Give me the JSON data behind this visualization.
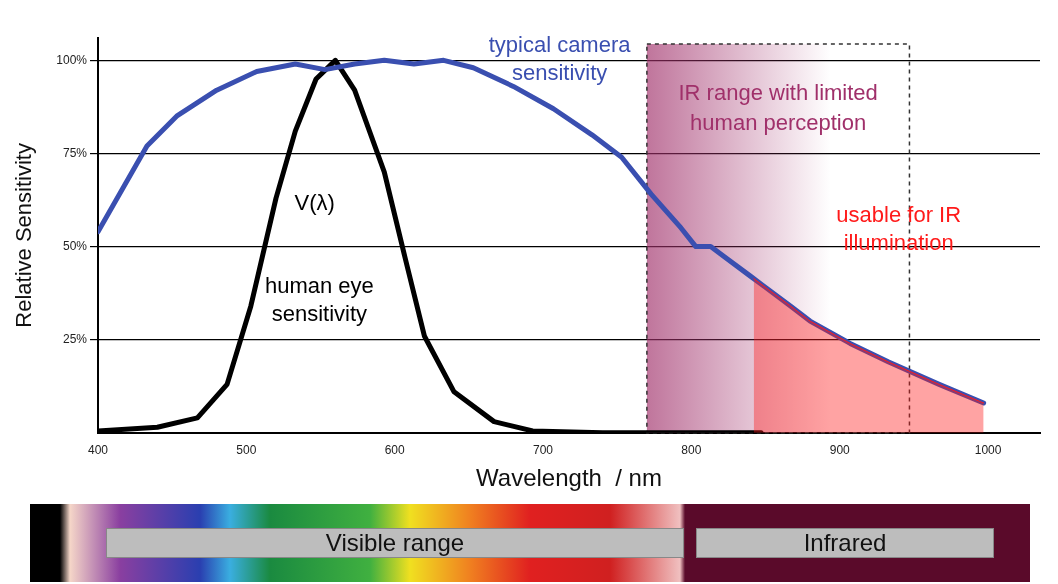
{
  "chart_data": {
    "type": "line",
    "xlabel": "Wavelength  / nm",
    "ylabel": "Relative Sensitivity",
    "xlim": [
      400,
      1035
    ],
    "ylim": [
      0,
      106
    ],
    "xticks": [
      400,
      500,
      600,
      700,
      800,
      900,
      1000
    ],
    "yticks": [
      {
        "value": 25,
        "label": "25%"
      },
      {
        "value": 50,
        "label": "50%"
      },
      {
        "value": 75,
        "label": "75%"
      },
      {
        "value": 100,
        "label": "100%"
      }
    ],
    "grid": "y",
    "marker": "none",
    "line_style": "solid",
    "series": [
      {
        "name": "usable for IR illumination",
        "type": "area",
        "color": "#ff1a1a",
        "x": [
          842,
          867,
          880,
          907,
          933,
          967,
          997
        ],
        "values": [
          41.4,
          34,
          30,
          24,
          19,
          13,
          8
        ]
      },
      {
        "name": "typical camera sensitivity",
        "color": "#3a4fb0",
        "x": [
          400,
          433,
          453,
          480,
          507,
          533,
          553,
          573,
          593,
          613,
          633,
          653,
          680,
          707,
          733,
          753,
          773,
          793,
          803,
          813,
          840,
          867,
          880,
          907,
          933,
          967,
          997
        ],
        "values": [
          54,
          77,
          85,
          92,
          97,
          99,
          97.5,
          99,
          100,
          99,
          100,
          98,
          93,
          87,
          80,
          74,
          64,
          55,
          50,
          50,
          42,
          34,
          30,
          24,
          19,
          13,
          8
        ]
      },
      {
        "name": "human eye sensitivity",
        "color": "#000000",
        "x": [
          400,
          440,
          467,
          487,
          503,
          520,
          533,
          547,
          560,
          573,
          593,
          607,
          620,
          640,
          667,
          693,
          740,
          847
        ],
        "values": [
          0.5,
          1.5,
          4,
          13,
          34,
          63,
          81,
          95,
          100,
          92,
          70,
          47,
          26,
          11,
          3,
          0.5,
          0,
          0
        ]
      }
    ],
    "bands": [
      {
        "axis": "x",
        "from": 770,
        "to": 947,
        "label": "IR range with limited human perception",
        "color": "#a0306a"
      }
    ],
    "annotations": [
      "V(λ)",
      "Visible range",
      "Infrared"
    ]
  }
}
